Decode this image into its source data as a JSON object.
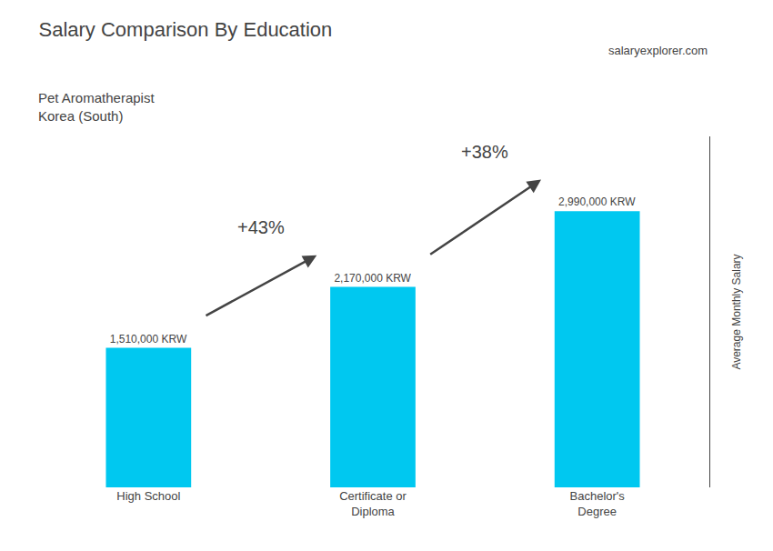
{
  "chart_data": {
    "type": "bar",
    "title": "Salary Comparison By Education",
    "subtitle": "Pet Aromatherapist\nKorea (South)",
    "ylabel": "Average Monthly Salary",
    "categories": [
      "High School",
      "Certificate or\nDiploma",
      "Bachelor's\nDegree"
    ],
    "values": [
      1510000,
      2170000,
      2990000
    ],
    "value_labels": [
      "1,510,000 KRW",
      "2,170,000 KRW",
      "2,990,000 KRW"
    ],
    "data_labels": true,
    "color": "#00C8F0",
    "annotations": [
      "+43%",
      "+38%",
      "salaryexplorer.com"
    ],
    "ylim": [
      0,
      3800000
    ],
    "tick_labels": "x",
    "grid": false
  }
}
